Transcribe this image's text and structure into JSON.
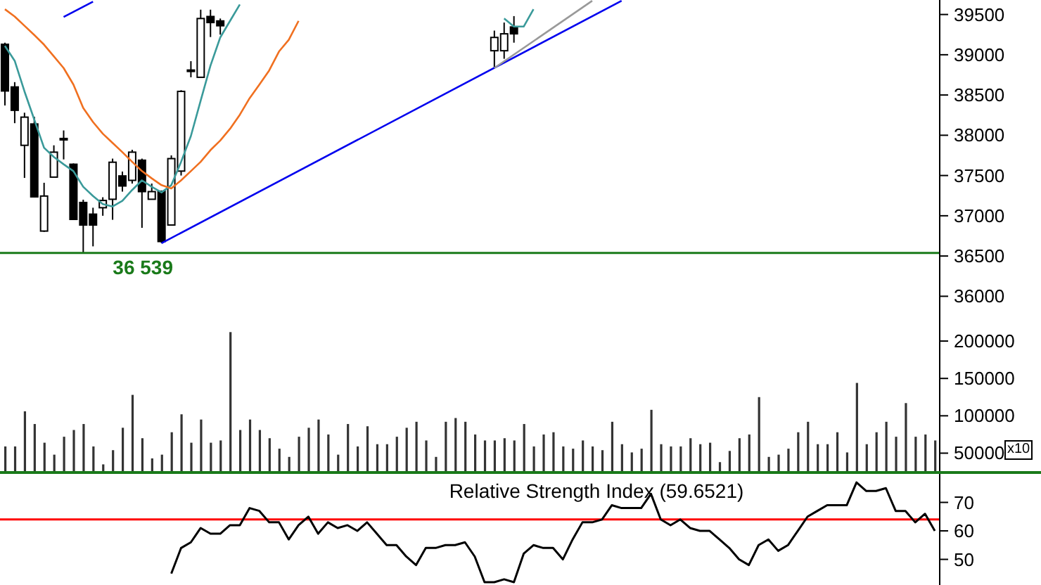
{
  "chart_data": [
    {
      "type": "candlestick",
      "categories": [
        null,
        null,
        null,
        null,
        null,
        null,
        null,
        null,
        null,
        null,
        null,
        null,
        null,
        null,
        null,
        null,
        null,
        null,
        null,
        null,
        null,
        null,
        null,
        null,
        null,
        null,
        null,
        null,
        null,
        null,
        null,
        null,
        null,
        null,
        null,
        null,
        null,
        null,
        null,
        null,
        null,
        null,
        null,
        null,
        null,
        null,
        null,
        null,
        null,
        null,
        null,
        null,
        null,
        null,
        null,
        null,
        null,
        null,
        null,
        null,
        null,
        null,
        null,
        null,
        null,
        null,
        null,
        null,
        null,
        null,
        null,
        null,
        null,
        null,
        null,
        null,
        null,
        null,
        null,
        null,
        null,
        null,
        null,
        null,
        null,
        null,
        null,
        null,
        null,
        null,
        null,
        null,
        null,
        null,
        null,
        null
      ],
      "ohlc": [
        [
          39130,
          39150,
          38370,
          38550
        ],
        [
          38600,
          38660,
          38150,
          38310
        ],
        [
          37875,
          38280,
          37470,
          38225
        ],
        [
          38140,
          38230,
          37230,
          37235
        ],
        [
          36810,
          37410,
          36800,
          37245
        ],
        [
          37480,
          37875,
          37480,
          37790
        ],
        [
          37945,
          38060,
          37700,
          37960
        ],
        [
          37640,
          37650,
          36950,
          36955
        ],
        [
          37165,
          37200,
          36539,
          36885
        ],
        [
          37020,
          37100,
          36620,
          36885
        ],
        [
          37100,
          37230,
          37000,
          37190
        ],
        [
          37205,
          37710,
          36950,
          37665
        ],
        [
          37495,
          37550,
          37300,
          37370
        ],
        [
          37440,
          37820,
          37400,
          37790
        ],
        [
          37690,
          37710,
          36850,
          37300
        ],
        [
          37205,
          37400,
          37200,
          37300
        ],
        [
          37305,
          37310,
          36660,
          36680
        ],
        [
          36885,
          37750,
          36880,
          37710
        ],
        [
          37555,
          38560,
          37500,
          38545
        ],
        [
          38800,
          38920,
          38720,
          38810
        ],
        [
          38720,
          39560,
          38720,
          39450
        ],
        [
          39475,
          39560,
          39220,
          39400
        ],
        [
          39420,
          39450,
          39250,
          39360
        ],
        null,
        null,
        null,
        null,
        null,
        null,
        null,
        null,
        null,
        null,
        null,
        null,
        null,
        null,
        null,
        null,
        null,
        null,
        null,
        null,
        null,
        null,
        null,
        null,
        null,
        null,
        null,
        [
          39050,
          39300,
          38835,
          39215
        ],
        [
          39050,
          39400,
          38950,
          39260
        ],
        [
          39345,
          39480,
          39150,
          39260
        ],
        null,
        null,
        null,
        null,
        null,
        null,
        null,
        null,
        null,
        null,
        null,
        null,
        null,
        null,
        null,
        null,
        null,
        null,
        null,
        null,
        null,
        null,
        null,
        null,
        null,
        null,
        null,
        null,
        null,
        null,
        null,
        null,
        null,
        null,
        null,
        null,
        null,
        null,
        null,
        null,
        null,
        null,
        null
      ],
      "series": [
        {
          "type": "line",
          "color": "#3a9a9a",
          "values": [
            39110,
            38925,
            38545,
            38195,
            37845,
            37730,
            37640,
            37555,
            37360,
            37245,
            37145,
            37115,
            37185,
            37320,
            37440,
            37360,
            37290,
            37380,
            37670,
            37990,
            38430,
            38865,
            39215,
            39420,
            39625,
            null,
            null,
            null,
            null,
            null,
            null,
            null,
            null,
            null,
            null,
            null,
            null,
            null,
            null,
            null,
            null,
            null,
            null,
            null,
            null,
            null,
            null,
            null,
            null,
            null,
            null,
            39450,
            39350,
            39350,
            39565,
            null,
            null,
            null,
            null,
            null,
            null,
            null,
            null,
            null,
            null,
            null,
            null,
            null,
            null,
            null,
            null,
            null,
            null,
            null,
            null,
            null,
            null,
            null,
            null,
            null,
            null,
            null,
            null,
            null,
            null,
            null,
            null,
            null,
            null,
            null,
            null,
            null,
            null,
            null,
            null,
            null
          ]
        },
        {
          "type": "line",
          "color": "#f07020",
          "values": [
            39565,
            39475,
            39360,
            39245,
            39125,
            38980,
            38835,
            38630,
            38340,
            38165,
            38020,
            37905,
            37790,
            37670,
            37555,
            37465,
            37380,
            37340,
            37440,
            37555,
            37670,
            37815,
            37935,
            38080,
            38255,
            38460,
            38630,
            38805,
            39040,
            39185,
            39420,
            null,
            null,
            null,
            null,
            null,
            null,
            null,
            null,
            null,
            null,
            null,
            null,
            null,
            null,
            null,
            null,
            null,
            null,
            null,
            null,
            null,
            null,
            null,
            null,
            null,
            null,
            null,
            null,
            null,
            null,
            null,
            null,
            null,
            null,
            null,
            null,
            null,
            null,
            null,
            null,
            null,
            null,
            null,
            null,
            null,
            null,
            null,
            null,
            null,
            null,
            null,
            null,
            null,
            null,
            null,
            null,
            null,
            null,
            null,
            null,
            null,
            null,
            null,
            null,
            null
          ]
        },
        {
          "type": "line",
          "color": "#0000ee",
          "values": [
            null,
            null,
            null,
            null,
            null,
            null,
            null,
            null,
            null,
            null,
            null,
            null,
            null,
            null,
            null,
            null,
            36660,
            null,
            null,
            null,
            null,
            null,
            null,
            null,
            null,
            null,
            null,
            null,
            null,
            null,
            null,
            null,
            null,
            null,
            null,
            null,
            null,
            null,
            null,
            null,
            null,
            null,
            null,
            null,
            null,
            null,
            null,
            null,
            null,
            null,
            null,
            null,
            null,
            null,
            null,
            null,
            null,
            null,
            null,
            null,
            null,
            null,
            null,
            39670,
            null,
            null,
            null,
            null,
            null,
            null,
            null,
            null,
            null,
            null,
            null,
            null,
            null,
            null,
            null,
            null,
            null,
            null,
            null,
            null,
            null,
            null,
            null,
            null,
            null,
            null,
            null,
            null,
            null,
            null,
            null,
            null
          ]
        },
        {
          "type": "line",
          "color": "#0000ee",
          "values": [
            null,
            null,
            null,
            null,
            null,
            null,
            39470,
            null,
            null,
            39660,
            null,
            null,
            null,
            null,
            null,
            null,
            null,
            null,
            null,
            null,
            null,
            null,
            null,
            null,
            null,
            null,
            null,
            null,
            null,
            null,
            null,
            null,
            null,
            null,
            null,
            null,
            null,
            null,
            null,
            null,
            null,
            null,
            null,
            null,
            null,
            null,
            null,
            null,
            null,
            null,
            null,
            null,
            null,
            null,
            null,
            null,
            null,
            null,
            null,
            null,
            null,
            null,
            null,
            null,
            null,
            null,
            null,
            null,
            null,
            null,
            null,
            null,
            null,
            null,
            null,
            null,
            null,
            null,
            null,
            null,
            null,
            null,
            null,
            null,
            null,
            null,
            null,
            null,
            null,
            null,
            null,
            null,
            null,
            null,
            null,
            null
          ]
        },
        {
          "type": "line",
          "color": "#999999",
          "values": [
            null,
            null,
            null,
            null,
            null,
            null,
            null,
            null,
            null,
            null,
            null,
            null,
            null,
            null,
            null,
            null,
            null,
            null,
            null,
            null,
            null,
            null,
            null,
            null,
            null,
            null,
            null,
            null,
            null,
            null,
            null,
            null,
            null,
            null,
            null,
            null,
            null,
            null,
            null,
            null,
            null,
            null,
            null,
            null,
            null,
            null,
            null,
            null,
            null,
            null,
            38835,
            null,
            null,
            null,
            null,
            null,
            null,
            null,
            null,
            null,
            39670,
            null,
            null,
            null,
            null,
            null,
            null,
            null,
            null,
            null,
            null,
            null,
            null,
            null,
            null,
            null,
            null,
            null,
            null,
            null,
            null,
            null,
            null,
            null,
            null,
            null,
            null,
            null,
            null,
            null,
            null,
            null,
            null,
            null,
            null,
            null
          ]
        }
      ],
      "ylim": [
        35750,
        39680
      ],
      "yticks": [
        36000,
        36500,
        37000,
        37500,
        38000,
        38500,
        39000,
        39500
      ],
      "ref_lines": [
        {
          "axis": "y",
          "value": 36539,
          "label": "36 539",
          "color": "#1a7a1a"
        }
      ],
      "tick_labels": "y"
    },
    {
      "type": "bar",
      "categories": [
        null,
        null,
        null,
        null,
        null,
        null,
        null,
        null,
        null,
        null,
        null,
        null,
        null,
        null,
        null,
        null,
        null,
        null,
        null,
        null,
        null,
        null,
        null,
        null,
        null,
        null,
        null,
        null,
        null,
        null,
        null,
        null,
        null,
        null,
        null,
        null,
        null,
        null,
        null,
        null,
        null,
        null,
        null,
        null,
        null,
        null,
        null,
        null,
        null,
        null,
        null,
        null,
        null,
        null,
        null,
        null,
        null,
        null,
        null,
        null,
        null,
        null,
        null,
        null,
        null,
        null,
        null,
        null,
        null,
        null,
        null,
        null,
        null,
        null,
        null,
        null,
        null,
        null,
        null,
        null,
        null,
        null,
        null,
        null,
        null,
        null,
        null,
        null,
        null,
        null,
        null,
        null,
        null,
        null,
        null,
        null
      ],
      "values": [
        59000,
        59000,
        106000,
        89000,
        64000,
        48000,
        72000,
        81000,
        89000,
        59000,
        35000,
        54000,
        84000,
        128000,
        70000,
        43000,
        48000,
        78000,
        102000,
        64000,
        95000,
        64000,
        67000,
        212000,
        81000,
        95000,
        81000,
        70000,
        56000,
        45000,
        72000,
        84000,
        95000,
        75000,
        48000,
        89000,
        59000,
        86000,
        62000,
        62000,
        72000,
        84000,
        92000,
        67000,
        45000,
        92000,
        97000,
        92000,
        75000,
        67000,
        67000,
        70000,
        67000,
        89000,
        59000,
        75000,
        78000,
        59000,
        56000,
        67000,
        59000,
        54000,
        92000,
        62000,
        51000,
        56000,
        108000,
        62000,
        59000,
        59000,
        70000,
        62000,
        64000,
        38000,
        53000,
        70000,
        75000,
        125000,
        45000,
        48000,
        56000,
        78000,
        92000,
        62000,
        62000,
        78000,
        51000,
        144000,
        62000,
        78000,
        92000,
        72000,
        117000,
        72000,
        75000,
        67000
      ],
      "color": "#333333",
      "ylim": [
        26000,
        233000
      ],
      "yticks": [
        50000,
        100000,
        150000,
        200000
      ],
      "annotations": [
        "x10"
      ],
      "tick_labels": "y"
    },
    {
      "type": "line",
      "title": "Relative Strength Index (59.6521)",
      "categories": [
        null,
        null,
        null,
        null,
        null,
        null,
        null,
        null,
        null,
        null,
        null,
        null,
        null,
        null,
        null,
        null,
        null,
        null,
        null,
        null,
        null,
        null,
        null,
        null,
        null,
        null,
        null,
        null,
        null,
        null,
        null,
        null,
        null,
        null,
        null,
        null,
        null,
        null,
        null,
        null,
        null,
        null,
        null,
        null,
        null,
        null,
        null,
        null,
        null,
        null,
        null,
        null,
        null,
        null,
        null,
        null,
        null,
        null,
        null,
        null,
        null,
        null,
        null,
        null,
        null,
        null,
        null,
        null,
        null,
        null,
        null,
        null,
        null,
        null,
        null,
        null,
        null,
        null,
        null,
        null,
        null,
        null,
        null,
        null,
        null,
        null,
        null,
        null,
        null,
        null,
        null,
        null,
        null,
        null,
        null,
        null
      ],
      "values": [
        null,
        null,
        null,
        null,
        null,
        null,
        null,
        null,
        null,
        null,
        null,
        null,
        null,
        null,
        null,
        null,
        null,
        45,
        54,
        56,
        61,
        59,
        59,
        62,
        62,
        68,
        67,
        63,
        63,
        57,
        62,
        65,
        59,
        63,
        61,
        62,
        60,
        63,
        59,
        55,
        55,
        51,
        48,
        54,
        54,
        55,
        55,
        56,
        51,
        42,
        42,
        43,
        42,
        52,
        55,
        54,
        54,
        50,
        57,
        63,
        63,
        64,
        69,
        68,
        68,
        68,
        73,
        64,
        62,
        64,
        61,
        60,
        60,
        57,
        54,
        50,
        48,
        55,
        57,
        53,
        55,
        60,
        65,
        67,
        69,
        69,
        69,
        77,
        74,
        74,
        75,
        67,
        67,
        63,
        66,
        60
      ],
      "color": "#000000",
      "ylim": [
        41,
        80
      ],
      "yticks": [
        50,
        60,
        70
      ],
      "ref_lines": [
        {
          "axis": "y",
          "value": 64,
          "color": "#ff0000"
        }
      ],
      "tick_labels": "y"
    }
  ]
}
